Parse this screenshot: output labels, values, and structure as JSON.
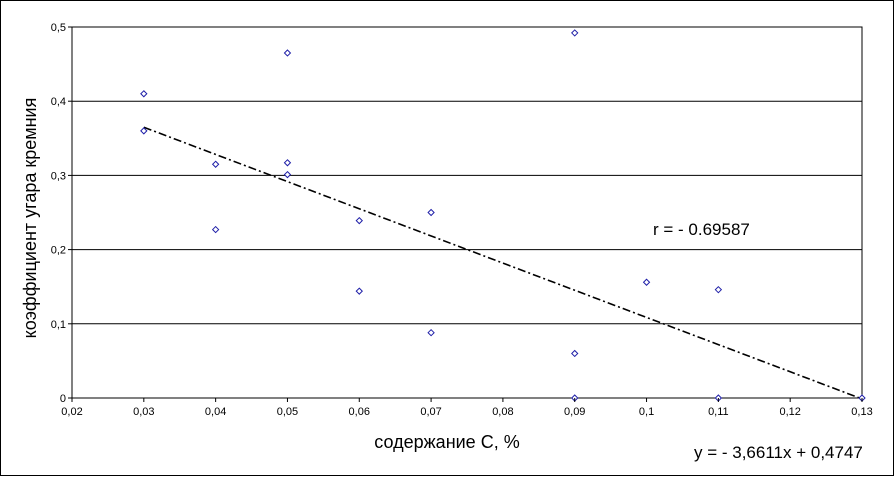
{
  "chart_data": {
    "type": "scatter",
    "xlabel": "содержание С, %",
    "ylabel": "коэффициент угара кремния",
    "xlim": [
      0.02,
      0.13
    ],
    "ylim": [
      0,
      0.5
    ],
    "x_ticks": [
      "0,02",
      "0,03",
      "0,04",
      "0,05",
      "0,06",
      "0,07",
      "0,08",
      "0,09",
      "0,1",
      "0,11",
      "0,12",
      "0,13"
    ],
    "x_tick_values": [
      0.02,
      0.03,
      0.04,
      0.05,
      0.06,
      0.07,
      0.08,
      0.09,
      0.1,
      0.11,
      0.12,
      0.13
    ],
    "y_ticks": [
      "0",
      "0,1",
      "0,2",
      "0,3",
      "0,4",
      "0,5"
    ],
    "y_tick_values": [
      0,
      0.1,
      0.2,
      0.3,
      0.4,
      0.5
    ],
    "grid": "horizontal",
    "series": [
      {
        "points": [
          [
            0.03,
            0.41
          ],
          [
            0.03,
            0.36
          ],
          [
            0.04,
            0.315
          ],
          [
            0.04,
            0.227
          ],
          [
            0.05,
            0.465
          ],
          [
            0.05,
            0.317
          ],
          [
            0.05,
            0.301
          ],
          [
            0.06,
            0.239
          ],
          [
            0.06,
            0.144
          ],
          [
            0.07,
            0.25
          ],
          [
            0.07,
            0.088
          ],
          [
            0.09,
            0.492
          ],
          [
            0.09,
            0.06
          ],
          [
            0.09,
            0.0
          ],
          [
            0.1,
            0.156
          ],
          [
            0.11,
            0.146
          ],
          [
            0.11,
            0.0
          ],
          [
            0.13,
            0.0
          ]
        ]
      }
    ],
    "trendline": {
      "slope": -3.6611,
      "intercept": 0.4747,
      "x_range": [
        0.03,
        0.13
      ]
    },
    "annotations": {
      "r_label": "r = - 0.69587",
      "equation_label": "y = - 3,6611x + 0,4747"
    },
    "colors": {
      "marker": "#1f1fa8",
      "grid": "#000000",
      "trendline": "#000000"
    }
  }
}
